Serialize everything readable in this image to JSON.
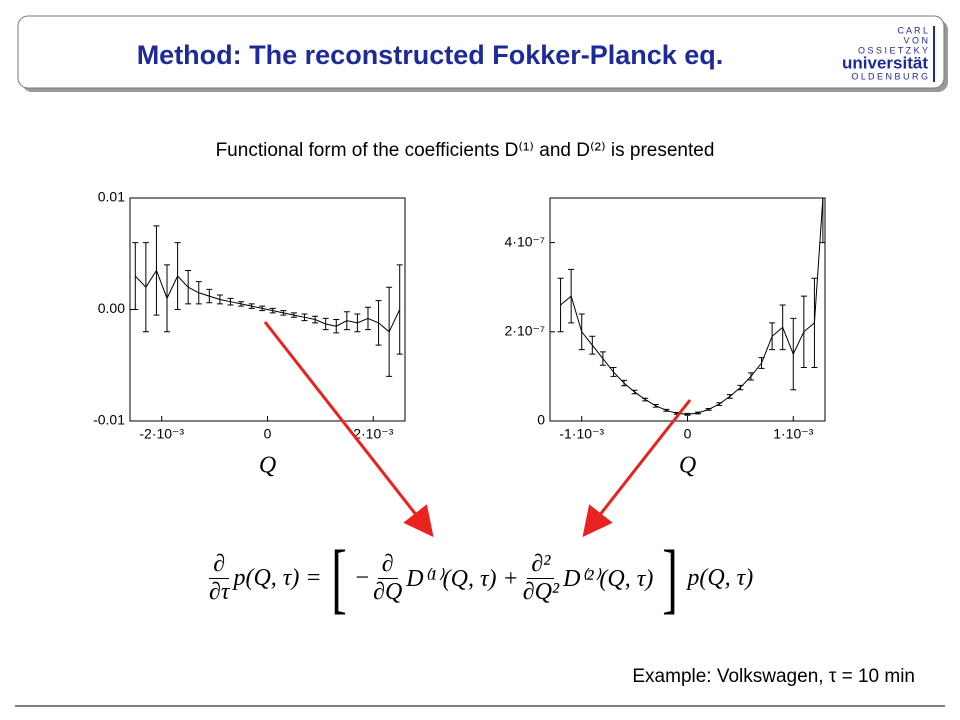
{
  "title": "Method: The reconstructed Fokker-Planck eq.",
  "logo": {
    "lines": [
      "C A R L",
      "V O N",
      "O S S I E T Z K Y",
      "universität",
      "O L D E N B U R G"
    ]
  },
  "subtitle": "Functional form of the coefficients D⁽¹⁾ and D⁽²⁾ is presented",
  "equation": {
    "lhs_num": "∂",
    "lhs_den": "∂τ",
    "lhs": "p(Q, τ) =",
    "minus": "−",
    "d1_num": "∂",
    "d1_den": "∂Q",
    "d1": "D⁽¹⁾(Q, τ) +",
    "d2_num": "∂²",
    "d2_den": "∂Q²",
    "d2": "D⁽²⁾(Q, τ)",
    "rhs": "p(Q, τ)"
  },
  "footer": "Example: Volkswagen, τ = 10 min",
  "chart_data": [
    {
      "type": "line",
      "x_label": "Q",
      "color": "#000000",
      "x": [
        -0.0025,
        -0.0023,
        -0.0021,
        -0.0019,
        -0.0017,
        -0.0015,
        -0.0013,
        -0.0011,
        -0.0009,
        -0.0007,
        -0.0005,
        -0.0003,
        -0.0001,
        0.0001,
        0.0003,
        0.0005,
        0.0007,
        0.0009,
        0.0011,
        0.0013,
        0.0015,
        0.0017,
        0.0019,
        0.0021,
        0.0023,
        0.0025
      ],
      "values": [
        0.003,
        0.002,
        0.0035,
        0.001,
        0.003,
        0.002,
        0.0015,
        0.0012,
        0.0009,
        0.0007,
        0.0005,
        0.0003,
        0.0001,
        -0.0001,
        -0.0003,
        -0.0005,
        -0.0007,
        -0.0009,
        -0.0013,
        -0.0015,
        -0.001,
        -0.0012,
        -0.0008,
        -0.0012,
        -0.002,
        0.0
      ],
      "errors": [
        0.003,
        0.004,
        0.004,
        0.003,
        0.003,
        0.0015,
        0.001,
        0.0006,
        0.0004,
        0.0003,
        0.0002,
        0.0002,
        0.0002,
        0.0002,
        0.0002,
        0.0002,
        0.0003,
        0.0003,
        0.0005,
        0.0006,
        0.0008,
        0.0008,
        0.001,
        0.002,
        0.004,
        0.004
      ],
      "xlim": [
        -0.0026,
        0.0026
      ],
      "ylim": [
        -0.01,
        0.01
      ],
      "xticks": [
        {
          "value": -0.002,
          "label": "-2·10⁻³"
        },
        0,
        {
          "value": 0.002,
          "label": "2·10⁻³"
        }
      ],
      "yticks": [
        0.01,
        {
          "value": 0,
          "label": "0.00"
        },
        -0.01
      ]
    },
    {
      "type": "line",
      "x_label": "Q",
      "color": "#000000",
      "x": [
        -0.0012,
        -0.0011,
        -0.001,
        -0.0009,
        -0.0008,
        -0.0007,
        -0.0006,
        -0.0005,
        -0.0004,
        -0.0003,
        -0.0002,
        -0.0001,
        0,
        0.0001,
        0.0002,
        0.0003,
        0.0004,
        0.0005,
        0.0006,
        0.0007,
        0.0008,
        0.0009,
        0.001,
        0.0011,
        0.0012,
        0.00128
      ],
      "values": [
        2.6e-07,
        2.8e-07,
        2e-07,
        1.7e-07,
        1.4e-07,
        1.1e-07,
        8.5e-08,
        6.5e-08,
        4.8e-08,
        3.4e-08,
        2.4e-08,
        1.7e-08,
        1.5e-08,
        1.8e-08,
        2.6e-08,
        3.8e-08,
        5.5e-08,
        7.5e-08,
        1e-07,
        1.3e-07,
        1.9e-07,
        2.1e-07,
        1.5e-07,
        2e-07,
        2.2e-07,
        5e-07
      ],
      "errors": [
        6e-08,
        6e-08,
        4e-08,
        2e-08,
        1.5e-08,
        1e-08,
        6e-09,
        4e-09,
        3e-09,
        3e-09,
        2e-09,
        2e-09,
        2e-09,
        2e-09,
        2e-09,
        3e-09,
        4e-09,
        5e-09,
        8e-09,
        1.2e-08,
        3e-08,
        5e-08,
        8e-08,
        8e-08,
        1e-07,
        1e-07
      ],
      "xlim": [
        -0.0013,
        0.0013
      ],
      "ylim": [
        0,
        5e-07
      ],
      "xticks": [
        {
          "value": -0.001,
          "label": "-1·10⁻³"
        },
        0,
        {
          "value": 0.001,
          "label": "1·10⁻³"
        }
      ],
      "yticks": [
        {
          "value": 4e-07,
          "label": "4·10⁻⁷"
        },
        {
          "value": 2e-07,
          "label": "2·10⁻⁷"
        },
        0
      ]
    }
  ]
}
